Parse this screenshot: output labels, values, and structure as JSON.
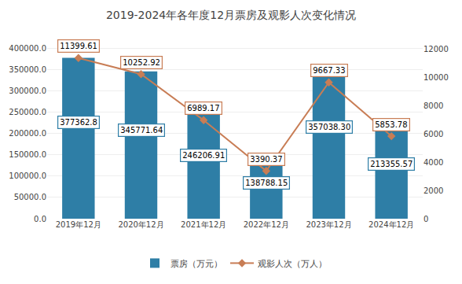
{
  "chart_data": {
    "type": "bar",
    "title": "2019-2024年各年度12月票房及观影人次变化情况",
    "categories": [
      "2019年12月",
      "2020年12月",
      "2021年12月",
      "2022年12月",
      "2023年12月",
      "2024年12月"
    ],
    "series": [
      {
        "name": "票房（万元）",
        "type": "bar",
        "color": "#2E7EA6",
        "values": [
          377362.8,
          345771.64,
          246206.91,
          138788.15,
          357038.3,
          213355.57
        ],
        "value_labels": [
          "377362.8",
          "345771.64",
          "246206.91",
          "138788.15",
          "357038.30",
          "213355.57"
        ]
      },
      {
        "name": "观影人次（万人）",
        "type": "line",
        "axis": "y2",
        "color": "#C87D55",
        "marker": "diamond",
        "values": [
          11399.61,
          10252.92,
          6989.17,
          3390.37,
          9667.33,
          5853.78
        ],
        "value_labels": [
          "11399.61",
          "10252.92",
          "6989.17",
          "3390.37",
          "9667.33",
          "5853.78"
        ]
      }
    ],
    "ylim": [
      0,
      430000
    ],
    "yticks": [
      {
        "value": 0,
        "label": "0.0"
      },
      {
        "value": 50000,
        "label": "50000.0"
      },
      {
        "value": 100000,
        "label": "100000.0"
      },
      {
        "value": 150000,
        "label": "150000.0"
      },
      {
        "value": 200000,
        "label": "200000.0"
      },
      {
        "value": 250000,
        "label": "250000.0"
      },
      {
        "value": 300000,
        "label": "300000.0"
      },
      {
        "value": 350000,
        "label": "350000.0"
      },
      {
        "value": 400000,
        "label": "400000.0"
      }
    ],
    "y2lim": [
      0,
      13000
    ],
    "y2ticks": [
      0,
      2000,
      4000,
      6000,
      8000,
      10000,
      12000
    ],
    "grid": true,
    "data_labels": true,
    "legend": "bottom"
  }
}
